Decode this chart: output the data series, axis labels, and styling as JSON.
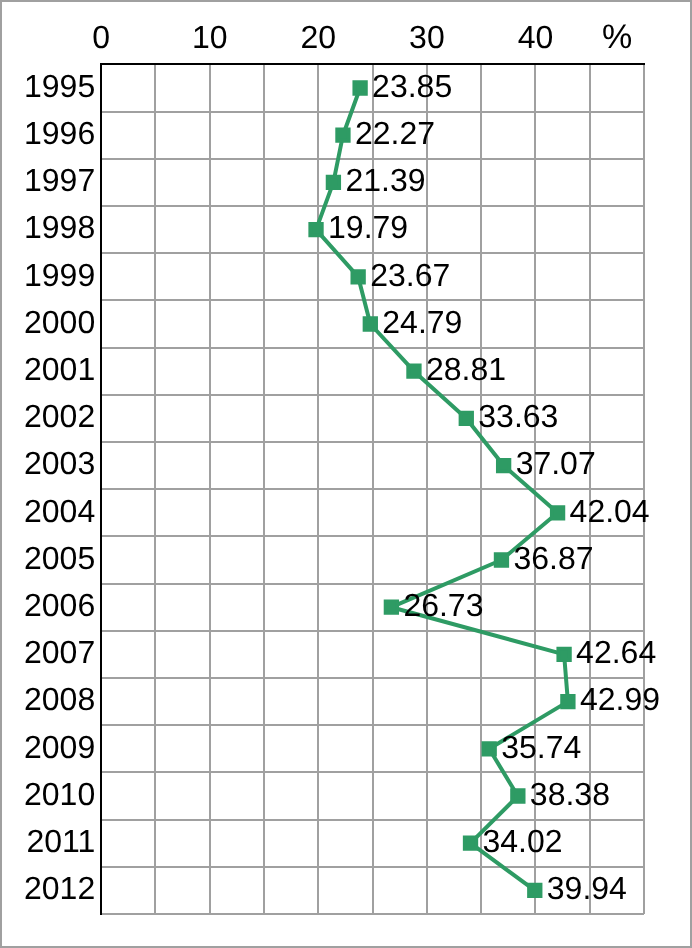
{
  "chart_data": {
    "type": "line",
    "xlabel": "%",
    "categories": [
      "1995",
      "1996",
      "1997",
      "1998",
      "1999",
      "2000",
      "2001",
      "2002",
      "2003",
      "2004",
      "2005",
      "2006",
      "2007",
      "2008",
      "2009",
      "2010",
      "2011",
      "2012"
    ],
    "orientation": "horizontal",
    "values": [
      23.85,
      22.27,
      21.39,
      19.79,
      23.67,
      24.79,
      28.81,
      33.63,
      37.07,
      42.04,
      36.87,
      26.73,
      42.64,
      42.99,
      35.74,
      38.38,
      34.02,
      39.94
    ],
    "color": "#2e9b64",
    "xlim": [
      0,
      50
    ],
    "xticks": [
      0,
      {
        "value": 5,
        "label": null
      },
      10,
      {
        "value": 15,
        "label": null
      },
      20,
      {
        "value": 25,
        "label": null
      },
      30,
      {
        "value": 35,
        "label": null
      },
      40,
      {
        "value": 45,
        "label": null
      },
      {
        "value": 50,
        "label": null
      }
    ],
    "grid": true,
    "marker": "square",
    "line_style": "solid",
    "data_labels": true,
    "legend": false
  }
}
